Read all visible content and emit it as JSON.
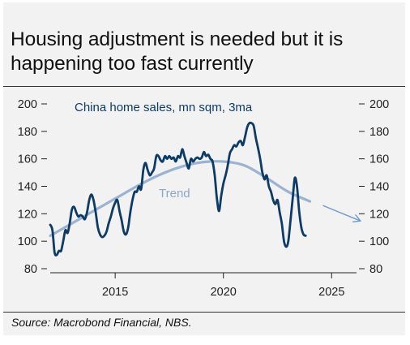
{
  "title_lines": [
    "Housing adjustment is needed but it is",
    "happening too fast currently"
  ],
  "source": "Source: Macrobond Financial, NBS.",
  "colors": {
    "series": "#0d3b66",
    "trend": "#9bb3d1",
    "background": "#f2f2f2"
  },
  "chart_data": {
    "type": "line",
    "title": "Housing adjustment is needed but it is happening too fast currently",
    "xlabel": "",
    "ylabel": "",
    "xlim": [
      2012,
      2026.6
    ],
    "ylim": [
      80,
      200
    ],
    "x_ticks": [
      "2015",
      "2020",
      "2025"
    ],
    "y_ticks": [
      "200",
      "180",
      "160",
      "140",
      "120",
      "100",
      "80"
    ],
    "grid": false,
    "series": [
      {
        "name": "China home sales, mn sqm, 3ma",
        "x": [
          2012.0,
          2012.1,
          2012.2,
          2012.3,
          2012.4,
          2012.5,
          2012.6,
          2012.7,
          2012.8,
          2012.9,
          2013.0,
          2013.1,
          2013.2,
          2013.3,
          2013.4,
          2013.5,
          2013.6,
          2013.7,
          2013.8,
          2013.9,
          2014.0,
          2014.1,
          2014.2,
          2014.3,
          2014.4,
          2014.5,
          2014.6,
          2014.7,
          2014.8,
          2014.9,
          2015.0,
          2015.1,
          2015.2,
          2015.3,
          2015.4,
          2015.5,
          2015.6,
          2015.7,
          2015.8,
          2015.9,
          2016.0,
          2016.1,
          2016.2,
          2016.3,
          2016.4,
          2016.5,
          2016.6,
          2016.7,
          2016.8,
          2016.9,
          2017.0,
          2017.1,
          2017.2,
          2017.3,
          2017.4,
          2017.5,
          2017.6,
          2017.7,
          2017.8,
          2017.9,
          2018.0,
          2018.1,
          2018.2,
          2018.3,
          2018.4,
          2018.5,
          2018.6,
          2018.7,
          2018.8,
          2018.9,
          2019.0,
          2019.1,
          2019.2,
          2019.3,
          2019.4,
          2019.5,
          2019.6,
          2019.7,
          2019.8,
          2019.9,
          2020.0,
          2020.1,
          2020.2,
          2020.3,
          2020.4,
          2020.5,
          2020.6,
          2020.7,
          2020.8,
          2020.9,
          2021.0,
          2021.1,
          2021.2,
          2021.3,
          2021.4,
          2021.5,
          2021.6,
          2021.7,
          2021.8,
          2021.9,
          2022.0,
          2022.1,
          2022.2,
          2022.3,
          2022.4,
          2022.5,
          2022.6,
          2022.7,
          2022.8,
          2022.9,
          2023.0,
          2023.1,
          2023.2,
          2023.3,
          2023.4,
          2023.5,
          2023.6,
          2023.7,
          2023.8
        ],
        "values": [
          112,
          108,
          92,
          90,
          93,
          93,
          100,
          108,
          106,
          113,
          123,
          125,
          121,
          118,
          119,
          118,
          116,
          121,
          130,
          134,
          130,
          121,
          110,
          105,
          103,
          104,
          107,
          113,
          118,
          124,
          128,
          130,
          122,
          115,
          107,
          105,
          110,
          121,
          130,
          136,
          136,
          140,
          138,
          152,
          157,
          152,
          148,
          150,
          153,
          162,
          162,
          159,
          158,
          162,
          160,
          162,
          160,
          161,
          158,
          162,
          161,
          167,
          162,
          157,
          153,
          160,
          158,
          160,
          161,
          160,
          161,
          165,
          162,
          163,
          160,
          158,
          148,
          131,
          122,
          133,
          142,
          148,
          155,
          164,
          167,
          170,
          169,
          172,
          173,
          170,
          176,
          183,
          186,
          186,
          184,
          175,
          168,
          160,
          150,
          145,
          148,
          140,
          136,
          130,
          127,
          130,
          121,
          113,
          100,
          96,
          100,
          115,
          131,
          146,
          140,
          122,
          110,
          105,
          104
        ]
      },
      {
        "name": "Trend",
        "x": [
          2012.0,
          2013.0,
          2014.0,
          2015.0,
          2016.0,
          2017.0,
          2018.0,
          2019.0,
          2020.0,
          2021.0,
          2022.0,
          2023.0,
          2024.0
        ],
        "values": [
          104,
          113,
          122,
          131,
          140,
          148,
          154,
          157.5,
          158,
          155,
          146,
          136,
          129
        ]
      }
    ],
    "projection_arrow": {
      "from": [
        2024.6,
        126
      ],
      "to": [
        2026.3,
        115
      ]
    }
  }
}
